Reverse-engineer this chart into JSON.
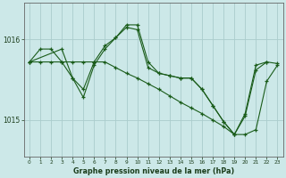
{
  "xlabel": "Graphe pression niveau de la mer (hPa)",
  "background_color": "#cce8e8",
  "grid_color": "#aacccc",
  "line_color": "#1a5c1a",
  "x_labels": [
    "0",
    "1",
    "2",
    "3",
    "4",
    "5",
    "6",
    "7",
    "8",
    "9",
    "10",
    "11",
    "12",
    "13",
    "14",
    "15",
    "16",
    "17",
    "18",
    "19",
    "20",
    "21",
    "22",
    "23"
  ],
  "ylim": [
    1014.55,
    1016.45
  ],
  "yticks": [
    1015.0,
    1016.0
  ],
  "ytick_labels": [
    "1015",
    "1016"
  ],
  "series": [
    [
      1015.72,
      1015.88,
      1015.88,
      1015.72,
      1015.52,
      1015.38,
      1015.72,
      1015.92,
      1016.02,
      1016.15,
      1016.12,
      1015.65,
      1015.58,
      1015.55,
      1015.52,
      1015.52,
      1015.38,
      1015.18,
      1014.98,
      1014.82,
      1015.08,
      1015.68,
      1015.72,
      null
    ],
    [
      1015.72,
      null,
      null,
      1015.88,
      1015.52,
      1015.28,
      1015.68,
      1015.88,
      1016.02,
      1016.18,
      1016.18,
      1015.72,
      1015.58,
      1015.55,
      1015.52,
      1015.52,
      1015.38,
      1015.18,
      1014.98,
      1014.82,
      1015.05,
      1015.62,
      1015.72,
      1015.7
    ],
    [
      1015.72,
      1015.72,
      1015.72,
      1015.72,
      1015.72,
      1015.72,
      1015.72,
      1015.72,
      1015.65,
      1015.58,
      1015.52,
      1015.45,
      1015.38,
      1015.3,
      1015.22,
      1015.15,
      1015.08,
      1015.0,
      1014.92,
      1014.82,
      1014.82,
      1014.88,
      1015.48,
      1015.68
    ]
  ]
}
